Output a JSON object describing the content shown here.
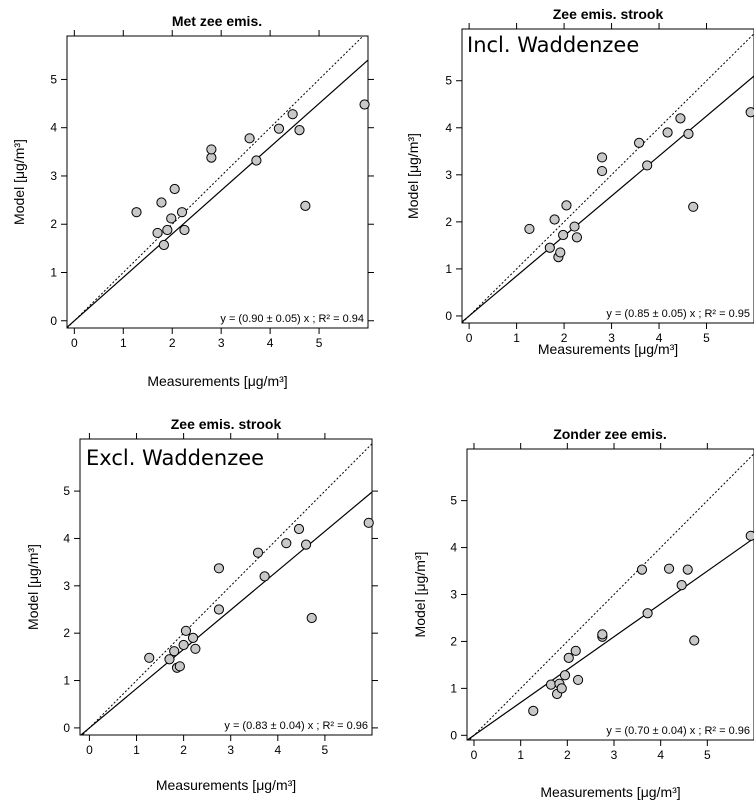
{
  "chart_data": [
    {
      "type": "scatter",
      "title": "Met zee emis.",
      "overlay_text": "",
      "xlabel": "Measurements [μg/m³]",
      "ylabel": "Model [μg/m³]",
      "xlim": [
        -0.15,
        6.0
      ],
      "ylim": [
        -0.15,
        5.9
      ],
      "xticks": [
        0,
        1,
        2,
        3,
        4,
        5
      ],
      "yticks": [
        0,
        1,
        2,
        3,
        4,
        5
      ],
      "equation": "y = (0.90 ± 0.05) x ; R² = 0.94",
      "fit_slope": 0.9,
      "reference_line": "1:1 dotted",
      "points": [
        {
          "x": 1.27,
          "y": 2.25
        },
        {
          "x": 1.7,
          "y": 1.82
        },
        {
          "x": 1.78,
          "y": 2.45
        },
        {
          "x": 1.83,
          "y": 1.57
        },
        {
          "x": 1.9,
          "y": 1.88
        },
        {
          "x": 1.98,
          "y": 2.12
        },
        {
          "x": 2.05,
          "y": 2.73
        },
        {
          "x": 2.2,
          "y": 2.25
        },
        {
          "x": 2.25,
          "y": 1.88
        },
        {
          "x": 2.8,
          "y": 3.38
        },
        {
          "x": 2.8,
          "y": 3.55
        },
        {
          "x": 3.58,
          "y": 3.78
        },
        {
          "x": 3.72,
          "y": 3.32
        },
        {
          "x": 4.18,
          "y": 3.98
        },
        {
          "x": 4.46,
          "y": 4.28
        },
        {
          "x": 4.6,
          "y": 3.95
        },
        {
          "x": 4.72,
          "y": 2.38
        },
        {
          "x": 5.93,
          "y": 4.48
        }
      ]
    },
    {
      "type": "scatter",
      "title": "Zee emis. strook",
      "overlay_text": "Incl. Waddenzee",
      "xlabel": "Measurements [μg/m³]",
      "ylabel": "Model [μg/m³]",
      "xlim": [
        -0.15,
        6.0
      ],
      "ylim": [
        -0.15,
        6.1
      ],
      "xticks": [
        0,
        1,
        2,
        3,
        4,
        5
      ],
      "yticks": [
        0,
        1,
        2,
        3,
        4,
        5
      ],
      "equation": "y = (0.85 ± 0.05) x ; R² = 0.95",
      "fit_slope": 0.85,
      "reference_line": "1:1 dotted",
      "points": [
        {
          "x": 1.27,
          "y": 1.85
        },
        {
          "x": 1.7,
          "y": 1.45
        },
        {
          "x": 1.8,
          "y": 2.05
        },
        {
          "x": 1.88,
          "y": 1.25
        },
        {
          "x": 1.92,
          "y": 1.35
        },
        {
          "x": 1.98,
          "y": 1.72
        },
        {
          "x": 2.05,
          "y": 2.35
        },
        {
          "x": 2.22,
          "y": 1.9
        },
        {
          "x": 2.27,
          "y": 1.67
        },
        {
          "x": 2.8,
          "y": 3.08
        },
        {
          "x": 2.8,
          "y": 3.37
        },
        {
          "x": 3.58,
          "y": 3.68
        },
        {
          "x": 3.75,
          "y": 3.2
        },
        {
          "x": 4.18,
          "y": 3.9
        },
        {
          "x": 4.45,
          "y": 4.2
        },
        {
          "x": 4.62,
          "y": 3.87
        },
        {
          "x": 4.72,
          "y": 2.32
        },
        {
          "x": 5.93,
          "y": 4.33
        }
      ]
    },
    {
      "type": "scatter",
      "title": "Zee emis. strook",
      "overlay_text": "Excl. Waddenzee",
      "xlabel": "Measurements [μg/m³]",
      "ylabel": "Model [μg/m³]",
      "xlim": [
        -0.2,
        6.0
      ],
      "ylim": [
        -0.15,
        6.1
      ],
      "xticks": [
        0,
        1,
        2,
        3,
        4,
        5
      ],
      "yticks": [
        0,
        1,
        2,
        3,
        4,
        5
      ],
      "equation": "y = (0.83 ± 0.04) x ; R² = 0.96",
      "fit_slope": 0.83,
      "reference_line": "1:1 dotted",
      "points": [
        {
          "x": 1.27,
          "y": 1.48
        },
        {
          "x": 1.7,
          "y": 1.45
        },
        {
          "x": 1.8,
          "y": 1.62
        },
        {
          "x": 1.86,
          "y": 1.27
        },
        {
          "x": 1.92,
          "y": 1.3
        },
        {
          "x": 2.0,
          "y": 1.75
        },
        {
          "x": 2.05,
          "y": 2.05
        },
        {
          "x": 2.2,
          "y": 1.9
        },
        {
          "x": 2.25,
          "y": 1.67
        },
        {
          "x": 2.75,
          "y": 2.5
        },
        {
          "x": 2.75,
          "y": 3.37
        },
        {
          "x": 3.58,
          "y": 3.7
        },
        {
          "x": 3.72,
          "y": 3.2
        },
        {
          "x": 4.18,
          "y": 3.9
        },
        {
          "x": 4.45,
          "y": 4.2
        },
        {
          "x": 4.6,
          "y": 3.87
        },
        {
          "x": 4.72,
          "y": 2.32
        },
        {
          "x": 5.93,
          "y": 4.33
        }
      ]
    },
    {
      "type": "scatter",
      "title": "Zonder zee emis.",
      "overlay_text": "",
      "xlabel": "Measurements [μg/m³]",
      "ylabel": "Model [μg/m³]",
      "xlim": [
        -0.15,
        6.0
      ],
      "ylim": [
        -0.1,
        6.1
      ],
      "xticks": [
        0,
        1,
        2,
        3,
        4,
        5
      ],
      "yticks": [
        0,
        1,
        2,
        3,
        4,
        5
      ],
      "equation": "y = (0.70 ± 0.04) x ; R² = 0.96",
      "fit_slope": 0.7,
      "reference_line": "1:1 dotted",
      "points": [
        {
          "x": 1.27,
          "y": 0.52
        },
        {
          "x": 1.65,
          "y": 1.08
        },
        {
          "x": 1.78,
          "y": 0.88
        },
        {
          "x": 1.83,
          "y": 1.1
        },
        {
          "x": 1.88,
          "y": 1.0
        },
        {
          "x": 1.95,
          "y": 1.28
        },
        {
          "x": 2.03,
          "y": 1.65
        },
        {
          "x": 2.18,
          "y": 1.8
        },
        {
          "x": 2.23,
          "y": 1.18
        },
        {
          "x": 2.75,
          "y": 2.1
        },
        {
          "x": 2.75,
          "y": 2.15
        },
        {
          "x": 3.6,
          "y": 3.53
        },
        {
          "x": 3.72,
          "y": 2.6
        },
        {
          "x": 4.18,
          "y": 3.55
        },
        {
          "x": 4.45,
          "y": 3.2
        },
        {
          "x": 4.58,
          "y": 3.53
        },
        {
          "x": 4.72,
          "y": 2.02
        },
        {
          "x": 5.93,
          "y": 4.25
        }
      ]
    }
  ]
}
